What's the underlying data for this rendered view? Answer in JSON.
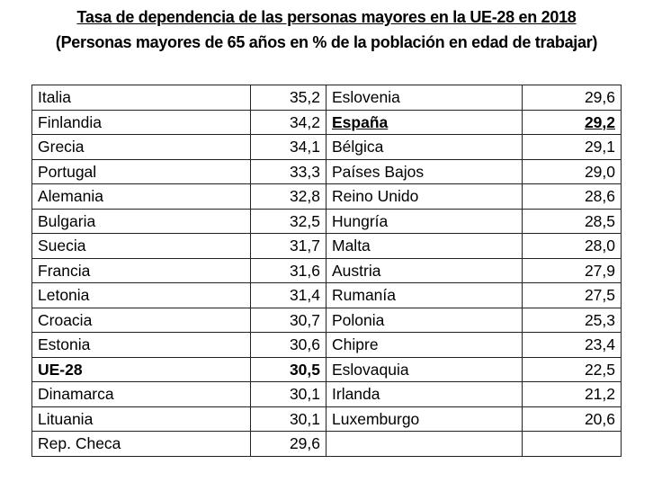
{
  "title": "Tasa de dependencia de las personas mayores en la UE-28 en 2018",
  "subtitle": "(Personas mayores de 65 años en % de la población en edad de trabajar)",
  "rows": [
    {
      "c1": "Italia",
      "v1": "35,2",
      "c2": "Eslovenia",
      "v2": "29,6"
    },
    {
      "c1": "Finlandia",
      "v1": "34,2",
      "c2": "España",
      "v2": "29,2",
      "highlight2": "bold-underline"
    },
    {
      "c1": "Grecia",
      "v1": "34,1",
      "c2": "Bélgica",
      "v2": "29,1"
    },
    {
      "c1": "Portugal",
      "v1": "33,3",
      "c2": "Países Bajos",
      "v2": "29,0"
    },
    {
      "c1": "Alemania",
      "v1": "32,8",
      "c2": "Reino Unido",
      "v2": "28,6"
    },
    {
      "c1": "Bulgaria",
      "v1": "32,5",
      "c2": "Hungría",
      "v2": "28,5"
    },
    {
      "c1": "Suecia",
      "v1": "31,7",
      "c2": "Malta",
      "v2": "28,0"
    },
    {
      "c1": "Francia",
      "v1": "31,6",
      "c2": "Austria",
      "v2": "27,9"
    },
    {
      "c1": "Letonia",
      "v1": "31,4",
      "c2": "Rumanía",
      "v2": "27,5"
    },
    {
      "c1": "Croacia",
      "v1": "30,7",
      "c2": "Polonia",
      "v2": "25,3"
    },
    {
      "c1": "Estonia",
      "v1": "30,6",
      "c2": "Chipre",
      "v2": "23,4"
    },
    {
      "c1": "UE-28",
      "v1": "30,5",
      "c2": "Eslovaquia",
      "v2": "22,5",
      "highlight1": "bold"
    },
    {
      "c1": "Dinamarca",
      "v1": "30,1",
      "c2": "Irlanda",
      "v2": "21,2"
    },
    {
      "c1": "Lituania",
      "v1": "30,1",
      "c2": "Luxemburgo",
      "v2": "20,6"
    },
    {
      "c1": "Rep. Checa",
      "v1": "29,6",
      "c2": "",
      "v2": ""
    }
  ]
}
